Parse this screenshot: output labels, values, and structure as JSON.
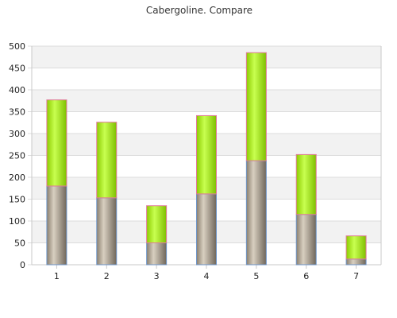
{
  "chart_data": {
    "type": "bar",
    "stacked": true,
    "title": "Cabergoline. Compare",
    "xlabel": "",
    "ylabel": "",
    "categories": [
      "1",
      "2",
      "3",
      "4",
      "5",
      "6",
      "7"
    ],
    "series": [
      {
        "values": [
          180,
          153,
          50,
          162,
          238,
          115,
          13
        ]
      },
      {
        "values": [
          197,
          173,
          85,
          179,
          247,
          137,
          53
        ]
      }
    ],
    "ylim": [
      0,
      500
    ],
    "yticks": [
      "0",
      "50",
      "100",
      "150",
      "200",
      "250",
      "300",
      "350",
      "400",
      "450",
      "500"
    ],
    "grid": true,
    "legend": "none",
    "colors": {
      "series_base": [
        "#8a7f6e",
        "#d8cfc0"
      ],
      "series_top": [
        "#8ccc00",
        "#c8ff50"
      ],
      "edge_base": "#6f95c8",
      "edge_top": "#e07a9a",
      "band": "#f2f2f2",
      "grid": "#dcdcdc",
      "axis": "#c8c8c8"
    }
  }
}
